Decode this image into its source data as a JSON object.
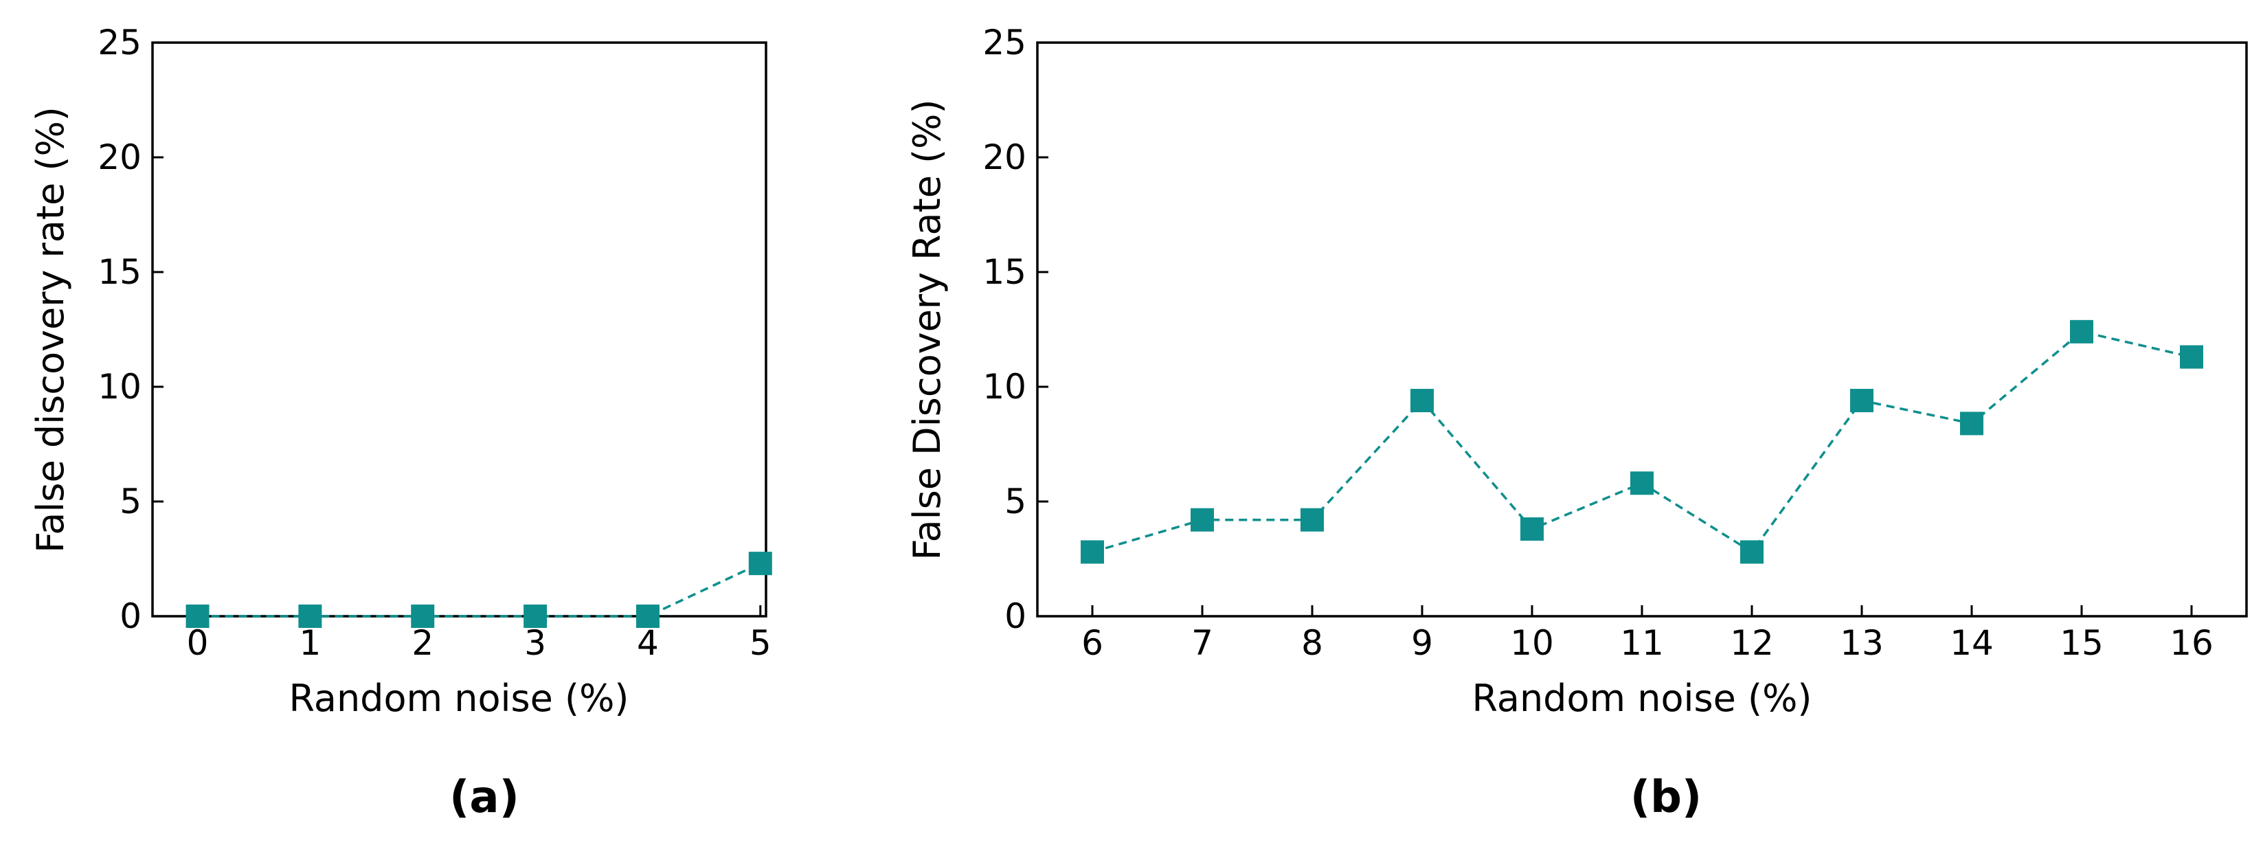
{
  "colors": {
    "series": "#0e8f8d"
  },
  "chart_data": [
    {
      "panel_label": "(a)",
      "type": "line",
      "marker": "square",
      "line_style": "dashed",
      "xlabel": "Random noise (%)",
      "ylabel": "False discovery rate (%)",
      "xlim": [
        -0.4,
        5.05
      ],
      "ylim": [
        0,
        25
      ],
      "xticks": [
        0,
        1,
        2,
        3,
        4,
        5
      ],
      "yticks": [
        0,
        5,
        10,
        15,
        20,
        25
      ],
      "grid": false,
      "series": [
        {
          "x": [
            0,
            1,
            2,
            3,
            4,
            5
          ],
          "y": [
            0,
            0,
            0,
            0,
            0,
            2.3
          ]
        }
      ]
    },
    {
      "panel_label": "(b)",
      "type": "line",
      "marker": "square",
      "line_style": "dashed",
      "xlabel": "Random noise (%)",
      "ylabel": "False Discovery Rate (%)",
      "xlim": [
        5.5,
        16.5
      ],
      "ylim": [
        0,
        25
      ],
      "xticks": [
        6,
        7,
        8,
        9,
        10,
        11,
        12,
        13,
        14,
        15,
        16
      ],
      "yticks": [
        0,
        5,
        10,
        15,
        20,
        25
      ],
      "grid": false,
      "series": [
        {
          "x": [
            6,
            7,
            8,
            9,
            10,
            11,
            12,
            13,
            14,
            15,
            16
          ],
          "y": [
            2.8,
            4.2,
            4.2,
            9.4,
            3.8,
            5.8,
            2.8,
            9.4,
            8.4,
            12.4,
            11.3
          ]
        }
      ]
    }
  ]
}
